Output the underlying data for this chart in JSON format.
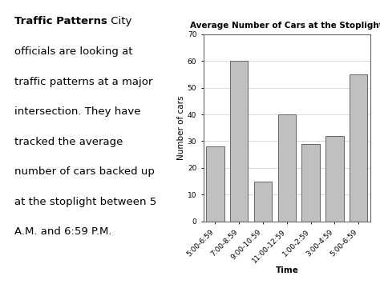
{
  "title": "Average Number of Cars at the Stoplight",
  "categories": [
    "5:00-6:59",
    "7:00-8:59",
    "9:00-10:59",
    "11:00-12:59",
    "1:00-2:59",
    "3:00-4:59",
    "5:00-6:59"
  ],
  "values": [
    28,
    60,
    15,
    40,
    29,
    32,
    55
  ],
  "bar_color": "#c0c0c0",
  "bar_edge_color": "#666666",
  "xlabel": "Time",
  "ylabel": "Number of cars",
  "ylim": [
    0,
    70
  ],
  "yticks": [
    0,
    10,
    20,
    30,
    40,
    50,
    60,
    70
  ],
  "background_color": "#ffffff",
  "figure_bg": "#ffffff",
  "text_bold": "Traffic Patterns",
  "lines": [
    " City",
    "officials are looking at",
    "traffic patterns at a major",
    "intersection. They have",
    "tracked the average",
    "number of cars backed up",
    "at the stoplight between 5",
    "A.M. and 6:59 P.M."
  ],
  "title_fontsize": 7.5,
  "axis_label_fontsize": 7.5,
  "tick_fontsize": 6.5,
  "text_fontsize": 9.5
}
